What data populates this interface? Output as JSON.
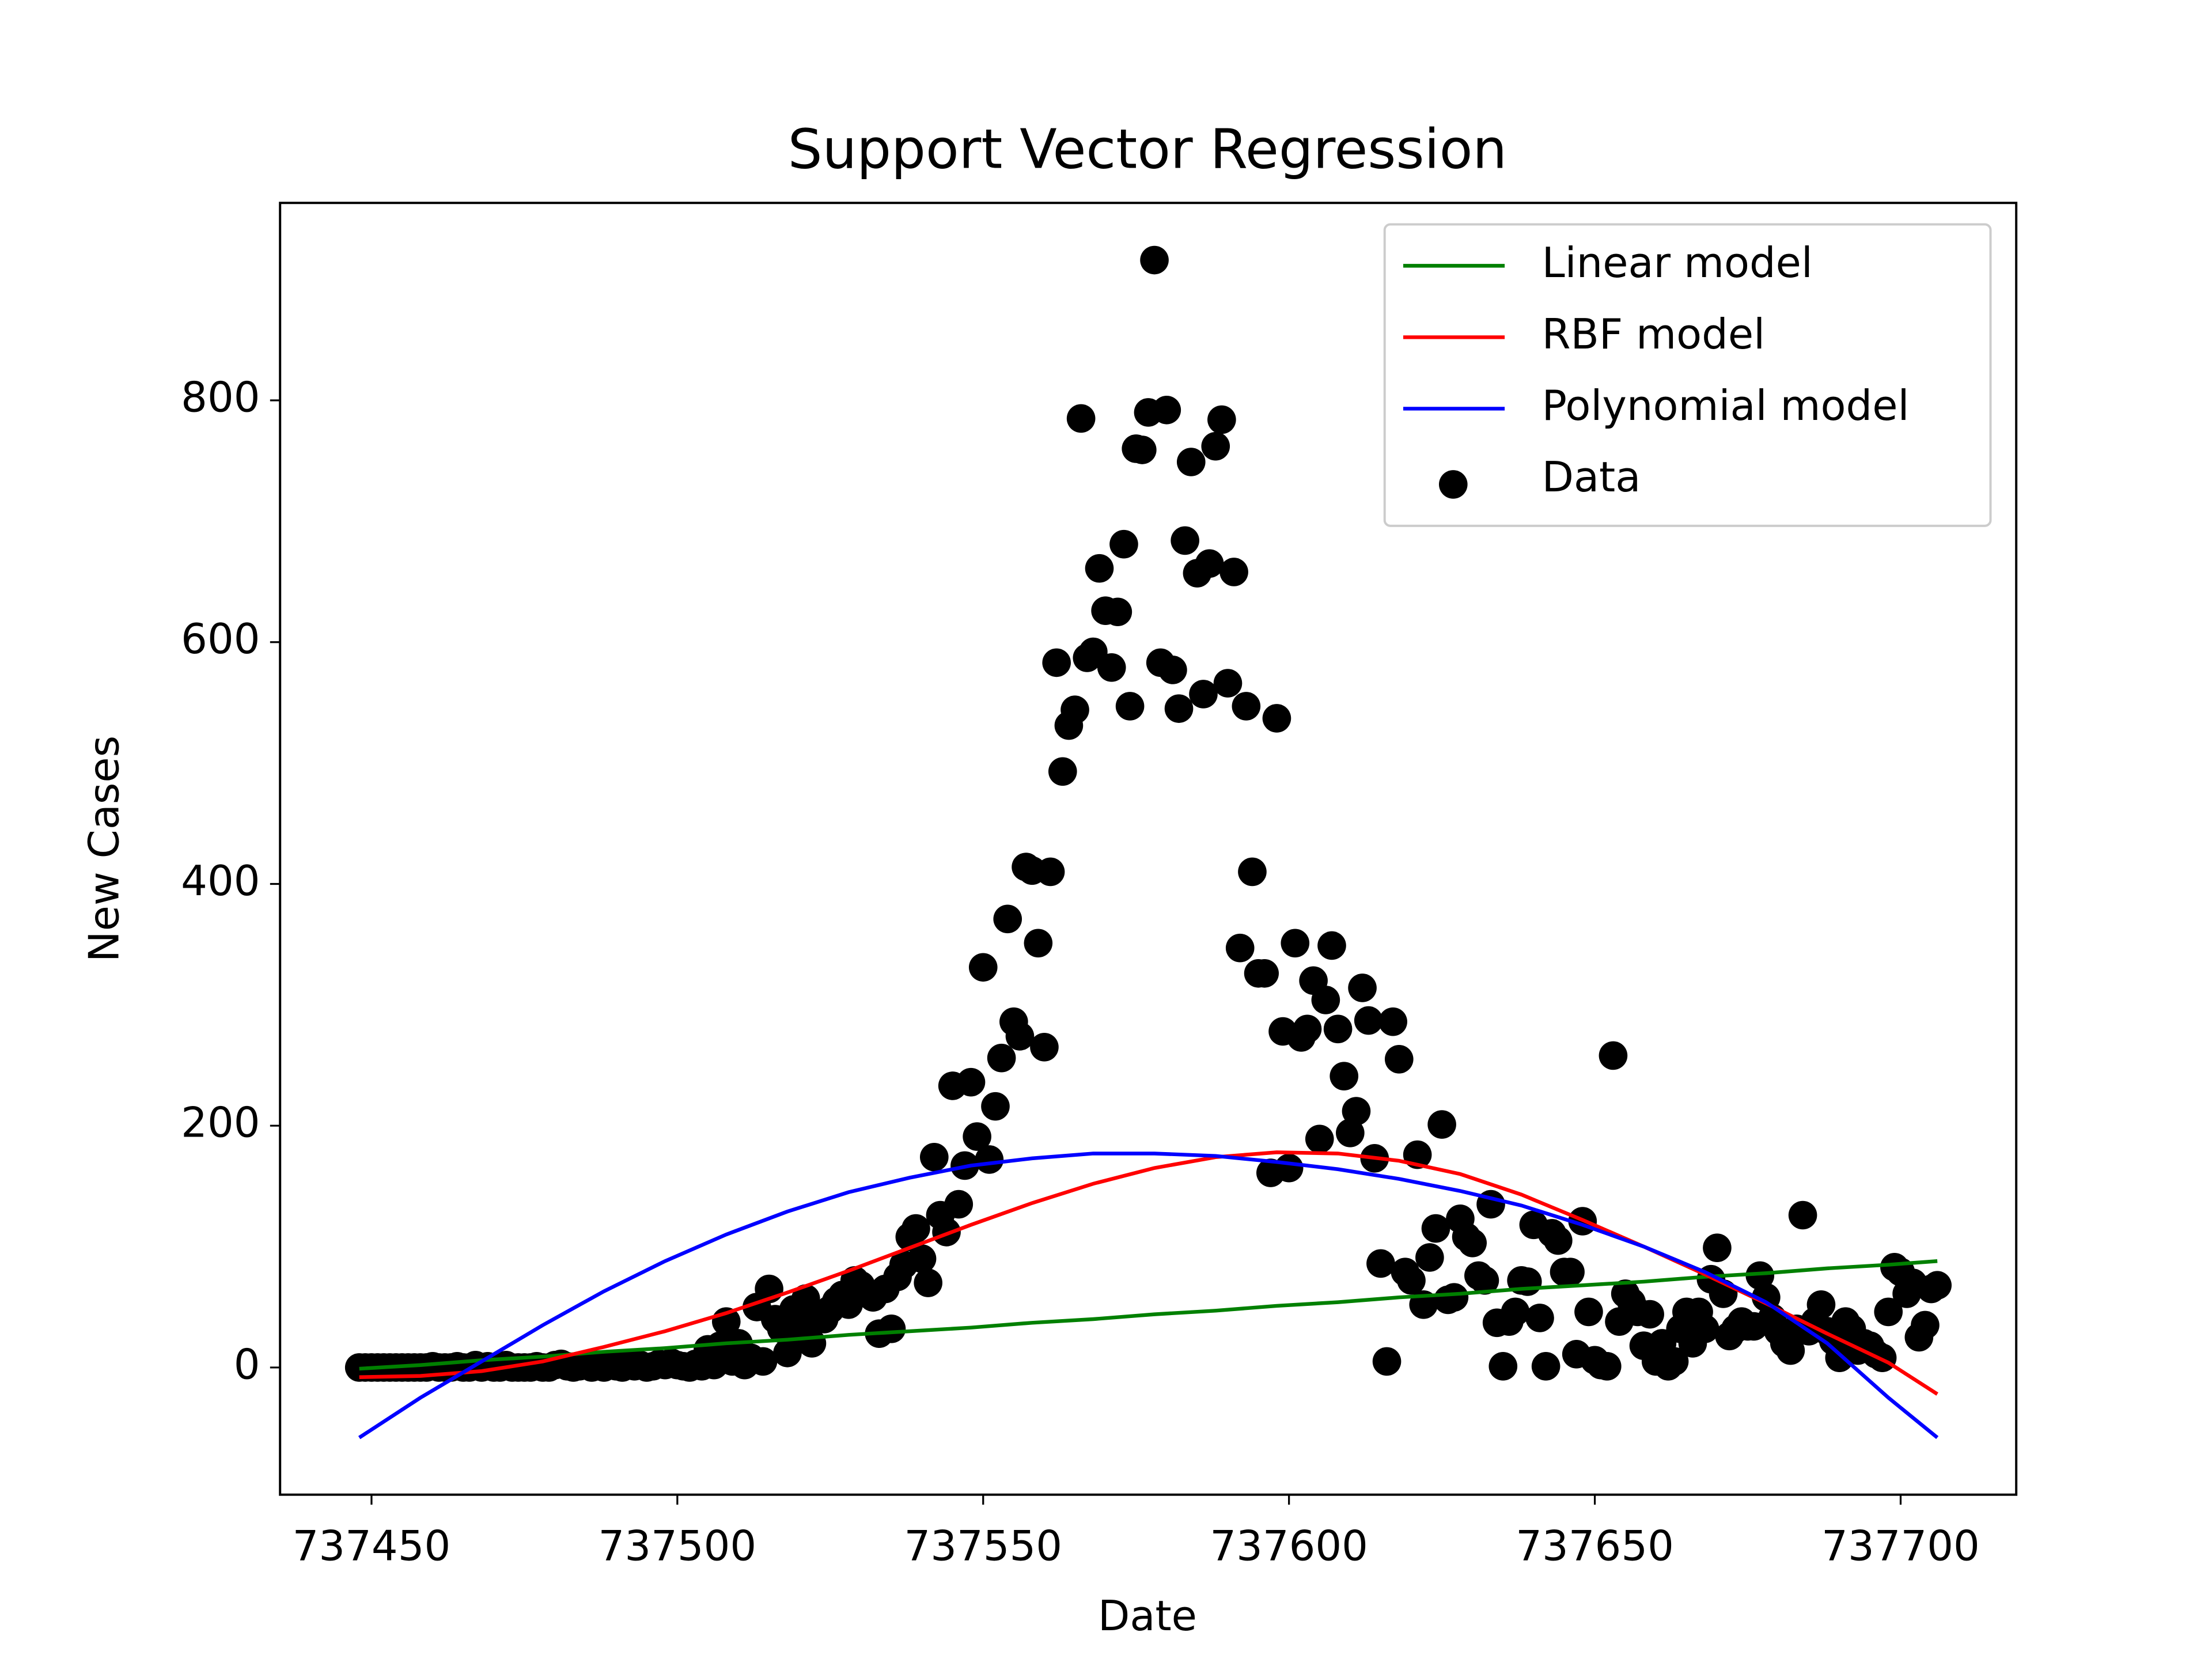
{
  "chart_data": {
    "type": "scatter-line",
    "title": "Support Vector Regression",
    "xlabel": "Date",
    "ylabel": "New Cases",
    "xlim": [
      737435.05,
      737718.9
    ],
    "ylim": [
      -105.2,
      963.3
    ],
    "xticks": [
      737450,
      737500,
      737550,
      737600,
      737650,
      737700
    ],
    "yticks": [
      0,
      200,
      400,
      600,
      800
    ],
    "legend": "upper right",
    "series": [
      {
        "name": "Linear model",
        "color": "#008000",
        "kind": "line",
        "x": [
          737448,
          737458,
          737468,
          737478,
          737488,
          737498,
          737508,
          737518,
          737528,
          737538,
          737548,
          737558,
          737568,
          737578,
          737588,
          737598,
          737608,
          737618,
          737628,
          737638,
          737648,
          737658,
          737668,
          737678,
          737688,
          737698,
          737706
        ],
        "values": [
          -1,
          2,
          6,
          9,
          13,
          16,
          20,
          23,
          27,
          30,
          33,
          37,
          40,
          44,
          47,
          51,
          54,
          58,
          61,
          65,
          68,
          71,
          75,
          78,
          82,
          85,
          88
        ]
      },
      {
        "name": "RBF model",
        "color": "#ff0000",
        "kind": "line",
        "x": [
          737448,
          737458,
          737468,
          737478,
          737488,
          737498,
          737508,
          737518,
          737528,
          737538,
          737548,
          737558,
          737568,
          737578,
          737588,
          737598,
          737608,
          737618,
          737628,
          737638,
          737648,
          737658,
          737668,
          737678,
          737688,
          737698,
          737706
        ],
        "values": [
          -8,
          -7,
          -3,
          5,
          17,
          30,
          45,
          62,
          80,
          99,
          118,
          136,
          152,
          165,
          174,
          178,
          177,
          171,
          160,
          143,
          122,
          100,
          77,
          53,
          28,
          4,
          -22
        ]
      },
      {
        "name": "Polynomial model",
        "color": "#0000ff",
        "kind": "line",
        "x": [
          737448,
          737458,
          737468,
          737478,
          737488,
          737498,
          737508,
          737518,
          737528,
          737538,
          737548,
          737558,
          737568,
          737578,
          737588,
          737598,
          737608,
          737618,
          737628,
          737638,
          737648,
          737658,
          737668,
          737678,
          737688,
          737698,
          737706
        ],
        "values": [
          -58,
          -25,
          5,
          35,
          63,
          88,
          110,
          129,
          145,
          157,
          167,
          173,
          177,
          177,
          175,
          170,
          164,
          156,
          146,
          134,
          118,
          100,
          79,
          54,
          20,
          -25,
          -58
        ]
      },
      {
        "name": "Data",
        "color": "#000000",
        "kind": "scatter",
        "x": [
          737448,
          737449,
          737450,
          737451,
          737452,
          737453,
          737454,
          737455,
          737456,
          737457,
          737458,
          737459,
          737460,
          737461,
          737462,
          737463,
          737464,
          737465,
          737466,
          737467,
          737468,
          737469,
          737470,
          737471,
          737472,
          737473,
          737474,
          737475,
          737476,
          737477,
          737478,
          737479,
          737480,
          737481,
          737482,
          737483,
          737484,
          737485,
          737486,
          737487,
          737488,
          737489,
          737490,
          737491,
          737492,
          737493,
          737494,
          737495,
          737496,
          737497,
          737498,
          737499,
          737500,
          737501,
          737502,
          737503,
          737504,
          737505,
          737506,
          737507,
          737508,
          737509,
          737510,
          737511,
          737512,
          737513,
          737514,
          737515,
          737516,
          737517,
          737518,
          737519,
          737520,
          737521,
          737522,
          737523,
          737524,
          737525,
          737526,
          737527,
          737528,
          737529,
          737530,
          737531,
          737532,
          737533,
          737534,
          737535,
          737536,
          737537,
          737538,
          737539,
          737540,
          737541,
          737542,
          737543,
          737544,
          737545,
          737546,
          737547,
          737548,
          737549,
          737550,
          737551,
          737552,
          737553,
          737554,
          737555,
          737556,
          737557,
          737558,
          737559,
          737560,
          737561,
          737562,
          737563,
          737564,
          737565,
          737566,
          737567,
          737568,
          737569,
          737570,
          737571,
          737572,
          737573,
          737574,
          737575,
          737576,
          737577,
          737578,
          737579,
          737580,
          737581,
          737582,
          737583,
          737584,
          737585,
          737586,
          737587,
          737588,
          737589,
          737590,
          737591,
          737592,
          737593,
          737594,
          737595,
          737596,
          737597,
          737598,
          737599,
          737600,
          737601,
          737602,
          737603,
          737604,
          737605,
          737606,
          737607,
          737608,
          737609,
          737610,
          737611,
          737612,
          737613,
          737614,
          737615,
          737616,
          737617,
          737618,
          737619,
          737620,
          737621,
          737622,
          737623,
          737624,
          737625,
          737626,
          737627,
          737628,
          737629,
          737630,
          737631,
          737632,
          737633,
          737634,
          737635,
          737636,
          737637,
          737638,
          737639,
          737640,
          737641,
          737642,
          737643,
          737644,
          737645,
          737646,
          737647,
          737648,
          737649,
          737650,
          737651,
          737652,
          737653,
          737654,
          737655,
          737656,
          737657,
          737658,
          737659,
          737660,
          737661,
          737662,
          737663,
          737664,
          737665,
          737666,
          737667,
          737668,
          737669,
          737670,
          737671,
          737672,
          737673,
          737674,
          737675,
          737676,
          737677,
          737678,
          737679,
          737680,
          737681,
          737682,
          737683,
          737684,
          737685,
          737686,
          737687,
          737688,
          737689,
          737690,
          737691,
          737692,
          737693,
          737694,
          737695,
          737696,
          737697,
          737698,
          737699,
          737700,
          737701,
          737702,
          737703,
          737704,
          737705,
          737706
        ],
        "values": [
          0,
          0,
          0,
          0,
          0,
          0,
          0,
          0,
          0,
          0,
          0,
          0,
          1,
          0,
          0,
          0,
          1,
          0,
          0,
          2,
          0,
          1,
          0,
          0,
          2,
          0,
          0,
          0,
          0,
          1,
          0,
          0,
          2,
          3,
          1,
          0,
          1,
          2,
          0,
          1,
          0,
          2,
          1,
          0,
          3,
          1,
          2,
          0,
          1,
          3,
          2,
          4,
          2,
          1,
          0,
          3,
          1,
          15,
          2,
          18,
          38,
          5,
          20,
          2,
          8,
          50,
          5,
          65,
          40,
          32,
          12,
          48,
          30,
          57,
          20,
          42,
          40,
          48,
          55,
          60,
          52,
          72,
          68,
          62,
          58,
          28,
          65,
          32,
          75,
          85,
          108,
          115,
          90,
          70,
          174,
          126,
          112,
          233,
          135,
          167,
          236,
          191,
          331,
          172,
          216,
          256,
          371,
          286,
          274,
          414,
          411,
          351,
          265,
          410,
          583,
          493,
          531,
          544,
          785,
          587,
          592,
          661,
          626,
          579,
          625,
          681,
          547,
          760,
          759,
          790,
          916,
          583,
          792,
          577,
          545,
          684,
          749,
          657,
          557,
          665,
          762,
          784,
          566,
          658,
          347,
          547,
          410,
          326,
          326,
          161,
          537,
          278,
          165,
          351,
          273,
          280,
          320,
          189,
          304,
          349,
          280,
          241,
          194,
          212,
          314,
          287,
          173,
          86,
          5,
          286,
          255,
          79,
          72,
          176,
          52,
          91,
          115,
          201,
          56,
          58,
          123,
          108,
          103,
          76,
          72,
          135,
          37,
          1,
          38,
          46,
          72,
          71,
          118,
          41,
          1,
          111,
          105,
          79,
          79,
          11,
          121,
          46,
          6,
          2,
          1,
          258,
          38,
          61,
          54,
          46,
          18,
          44,
          5,
          20,
          1,
          5,
          32,
          46,
          20,
          46,
          32,
          73,
          99,
          61,
          26,
          32,
          38,
          34,
          34,
          76,
          58,
          41,
          30,
          20,
          14,
          32,
          126,
          30,
          38,
          52,
          30,
          22,
          8,
          38,
          32,
          14,
          20,
          18,
          11,
          8,
          46,
          83,
          79,
          61,
          70,
          25,
          35,
          65,
          68
        ]
      }
    ]
  }
}
